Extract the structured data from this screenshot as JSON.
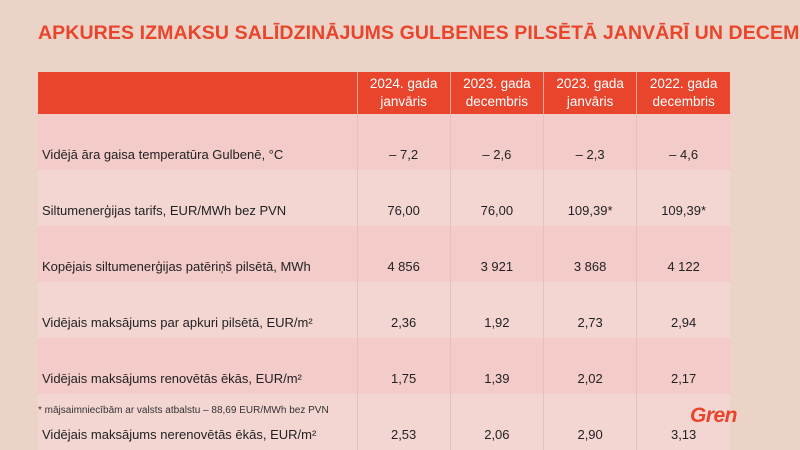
{
  "title": "APKURES IZMAKSU SALĪDZINĀJUMS GULBENES PILSĒTĀ JANVĀRĪ UN DECEMBRĪ",
  "columns": [
    {
      "line1": "2024. gada",
      "line2": "janvāris"
    },
    {
      "line1": "2023. gada",
      "line2": "decembris"
    },
    {
      "line1": "2023. gada",
      "line2": "janvāris"
    },
    {
      "line1": "2022. gada",
      "line2": "decembris"
    }
  ],
  "rows": [
    {
      "label": "Vidējā āra gaisa temperatūra Gulbenē, °C",
      "values": [
        "– 7,2",
        "– 2,6",
        "– 2,3",
        "– 4,6"
      ]
    },
    {
      "label": "Siltumenerģijas tarifs, EUR/MWh bez PVN",
      "values": [
        "76,00",
        "76,00",
        "109,39*",
        "109,39*"
      ]
    },
    {
      "label": "Kopējais siltumenerģijas patēriņš pilsētā, MWh",
      "values": [
        "4 856",
        "3 921",
        "3 868",
        "4 122"
      ]
    },
    {
      "label": "Vidējais maksājums par apkuri pilsētā, EUR/m²",
      "values": [
        "2,36",
        "1,92",
        "2,73",
        "2,94"
      ]
    },
    {
      "label": "Vidējais maksājums renovētās ēkās, EUR/m²",
      "values": [
        "1,75",
        "1,39",
        "2,02",
        "2,17"
      ]
    },
    {
      "label": "Vidējais maksājums nerenovētās ēkās, EUR/m²",
      "values": [
        "2,53",
        "2,06",
        "2,90",
        "3,13"
      ]
    }
  ],
  "footnote": "* mājsaimniecībām ar valsts atbalstu – 88,69 EUR/MWh bez PVN",
  "logo": "Gren",
  "colors": {
    "accent": "#e8452c",
    "background": "#ecd3c7"
  }
}
